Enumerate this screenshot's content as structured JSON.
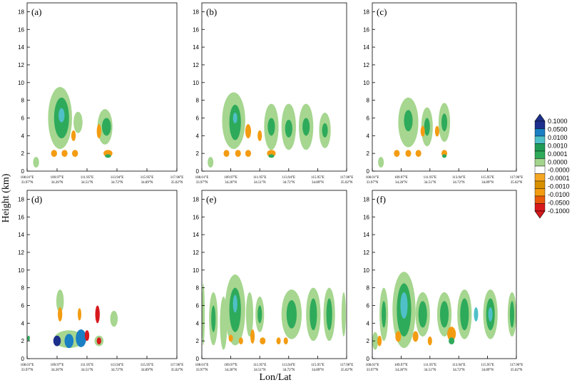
{
  "figure": {
    "ylabel": "Height (km)",
    "xlabel": "Lon/Lat"
  },
  "colorbar": {
    "colors": [
      "#d7191c",
      "#e8590c",
      "#f39c12",
      "#d89000",
      "#f5a623",
      "#ffffff",
      "#a3d48c",
      "#2eaa5b",
      "#1f9b55",
      "#4fc0c8",
      "#1a7fc3",
      "#1c2f8c"
    ],
    "labels": [
      "0.1000",
      "0.0500",
      "0.0100",
      "0.0010",
      "0.0001",
      "0.0000",
      "-0.0000",
      "-0.0001",
      "-0.0010",
      "-0.0100",
      "-0.0500",
      "-0.1000"
    ]
  },
  "chart_data": [
    {
      "type": "contour",
      "panel_label": "(a)",
      "ylim": [
        0,
        19
      ],
      "yticks": [
        0,
        2,
        4,
        6,
        8,
        10,
        12,
        14,
        16,
        18
      ],
      "xticks": [
        {
          "lon": "108.01°E",
          "lat": "33.97°N"
        },
        {
          "lon": "109.97°E",
          "lat": "34.26°N"
        },
        {
          "lon": "111.95°E",
          "lat": "34.51°N"
        },
        {
          "lon": "113.94°E",
          "lat": "34.72°N"
        },
        {
          "lon": "115.95°E",
          "lat": "34.89°N"
        },
        {
          "lon": "117.96°E",
          "lat": "35.02°N"
        }
      ],
      "features": [
        {
          "x": 0.06,
          "y": 1.0,
          "rx": 0.02,
          "ry": 0.6,
          "level": "light-green"
        },
        {
          "x": 0.22,
          "y": 6.0,
          "rx": 0.08,
          "ry": 3.5,
          "level": "light-green"
        },
        {
          "x": 0.23,
          "y": 6.0,
          "rx": 0.05,
          "ry": 2.3,
          "level": "green"
        },
        {
          "x": 0.23,
          "y": 6.3,
          "rx": 0.02,
          "ry": 0.8,
          "level": "cyan"
        },
        {
          "x": 0.34,
          "y": 5.5,
          "rx": 0.03,
          "ry": 1.2,
          "level": "light-green"
        },
        {
          "x": 0.52,
          "y": 5.0,
          "rx": 0.05,
          "ry": 2.0,
          "level": "light-green"
        },
        {
          "x": 0.53,
          "y": 5.0,
          "rx": 0.03,
          "ry": 1.0,
          "level": "green"
        },
        {
          "x": 0.48,
          "y": 4.5,
          "rx": 0.015,
          "ry": 0.8,
          "level": "orange"
        },
        {
          "x": 0.31,
          "y": 4.0,
          "rx": 0.015,
          "ry": 0.6,
          "level": "orange"
        },
        {
          "x": 0.18,
          "y": 2.0,
          "rx": 0.02,
          "ry": 0.4,
          "level": "orange"
        },
        {
          "x": 0.25,
          "y": 2.0,
          "rx": 0.02,
          "ry": 0.4,
          "level": "orange"
        },
        {
          "x": 0.32,
          "y": 2.0,
          "rx": 0.02,
          "ry": 0.4,
          "level": "orange"
        },
        {
          "x": 0.54,
          "y": 2.0,
          "rx": 0.03,
          "ry": 0.4,
          "level": "orange"
        },
        {
          "x": 0.54,
          "y": 1.7,
          "rx": 0.02,
          "ry": 0.2,
          "level": "green"
        }
      ]
    },
    {
      "type": "contour",
      "panel_label": "(b)",
      "ylim": [
        0,
        19
      ],
      "yticks": [
        0,
        2,
        4,
        6,
        8,
        10,
        12,
        14,
        16,
        18
      ],
      "xticks": [
        {
          "lon": "108.01°E",
          "lat": "33.97°N"
        },
        {
          "lon": "109.97°E",
          "lat": "34.26°N"
        },
        {
          "lon": "111.95°E",
          "lat": "34.51°N"
        },
        {
          "lon": "113.94°E",
          "lat": "34.72°N"
        },
        {
          "lon": "115.95°E",
          "lat": "34.89°N"
        },
        {
          "lon": "117.96°E",
          "lat": "35.02°N"
        }
      ],
      "features": [
        {
          "x": 0.06,
          "y": 1.0,
          "rx": 0.02,
          "ry": 0.6,
          "level": "light-green"
        },
        {
          "x": 0.22,
          "y": 5.7,
          "rx": 0.08,
          "ry": 3.2,
          "level": "light-green"
        },
        {
          "x": 0.23,
          "y": 5.5,
          "rx": 0.04,
          "ry": 2.0,
          "level": "green"
        },
        {
          "x": 0.23,
          "y": 6.0,
          "rx": 0.015,
          "ry": 0.6,
          "level": "cyan"
        },
        {
          "x": 0.32,
          "y": 4.5,
          "rx": 0.02,
          "ry": 0.8,
          "level": "orange"
        },
        {
          "x": 0.48,
          "y": 5.0,
          "rx": 0.05,
          "ry": 2.6,
          "level": "light-green"
        },
        {
          "x": 0.48,
          "y": 5.0,
          "rx": 0.025,
          "ry": 1.0,
          "level": "green"
        },
        {
          "x": 0.6,
          "y": 5.0,
          "rx": 0.05,
          "ry": 2.6,
          "level": "light-green"
        },
        {
          "x": 0.6,
          "y": 4.8,
          "rx": 0.025,
          "ry": 1.0,
          "level": "green"
        },
        {
          "x": 0.72,
          "y": 5.0,
          "rx": 0.05,
          "ry": 2.6,
          "level": "light-green"
        },
        {
          "x": 0.72,
          "y": 5.0,
          "rx": 0.025,
          "ry": 1.0,
          "level": "green"
        },
        {
          "x": 0.85,
          "y": 4.6,
          "rx": 0.04,
          "ry": 2.0,
          "level": "light-green"
        },
        {
          "x": 0.85,
          "y": 4.6,
          "rx": 0.02,
          "ry": 0.8,
          "level": "green"
        },
        {
          "x": 0.4,
          "y": 4.0,
          "rx": 0.015,
          "ry": 0.6,
          "level": "orange"
        },
        {
          "x": 0.17,
          "y": 2.0,
          "rx": 0.02,
          "ry": 0.4,
          "level": "orange"
        },
        {
          "x": 0.25,
          "y": 2.0,
          "rx": 0.02,
          "ry": 0.4,
          "level": "orange"
        },
        {
          "x": 0.32,
          "y": 2.0,
          "rx": 0.02,
          "ry": 0.4,
          "level": "orange"
        },
        {
          "x": 0.48,
          "y": 2.0,
          "rx": 0.03,
          "ry": 0.4,
          "level": "orange"
        },
        {
          "x": 0.48,
          "y": 1.7,
          "rx": 0.02,
          "ry": 0.2,
          "level": "green"
        }
      ]
    },
    {
      "type": "contour",
      "panel_label": "(c)",
      "ylim": [
        0,
        19
      ],
      "yticks": [
        0,
        2,
        4,
        6,
        8,
        10,
        12,
        14,
        16,
        18
      ],
      "xticks": [
        {
          "lon": "108.01°E",
          "lat": "33.97°N"
        },
        {
          "lon": "109.97°E",
          "lat": "34.26°N"
        },
        {
          "lon": "111.95°E",
          "lat": "34.51°N"
        },
        {
          "lon": "113.94°E",
          "lat": "34.72°N"
        },
        {
          "lon": "115.95°E",
          "lat": "34.89°N"
        },
        {
          "lon": "117.96°E",
          "lat": "35.02°N"
        }
      ],
      "features": [
        {
          "x": 0.06,
          "y": 1.0,
          "rx": 0.02,
          "ry": 0.6,
          "level": "light-green"
        },
        {
          "x": 0.25,
          "y": 5.5,
          "rx": 0.07,
          "ry": 2.8,
          "level": "light-green"
        },
        {
          "x": 0.25,
          "y": 5.7,
          "rx": 0.03,
          "ry": 1.2,
          "level": "green"
        },
        {
          "x": 0.38,
          "y": 5.0,
          "rx": 0.04,
          "ry": 2.2,
          "level": "light-green"
        },
        {
          "x": 0.38,
          "y": 5.0,
          "rx": 0.02,
          "ry": 1.0,
          "level": "green"
        },
        {
          "x": 0.5,
          "y": 5.5,
          "rx": 0.04,
          "ry": 2.2,
          "level": "light-green"
        },
        {
          "x": 0.5,
          "y": 5.5,
          "rx": 0.02,
          "ry": 1.0,
          "level": "green"
        },
        {
          "x": 0.35,
          "y": 4.5,
          "rx": 0.015,
          "ry": 0.6,
          "level": "orange"
        },
        {
          "x": 0.45,
          "y": 4.5,
          "rx": 0.015,
          "ry": 0.6,
          "level": "orange"
        },
        {
          "x": 0.17,
          "y": 2.0,
          "rx": 0.02,
          "ry": 0.4,
          "level": "orange"
        },
        {
          "x": 0.25,
          "y": 2.0,
          "rx": 0.02,
          "ry": 0.4,
          "level": "orange"
        },
        {
          "x": 0.32,
          "y": 2.0,
          "rx": 0.02,
          "ry": 0.4,
          "level": "orange"
        },
        {
          "x": 0.5,
          "y": 2.0,
          "rx": 0.02,
          "ry": 0.4,
          "level": "orange"
        },
        {
          "x": 0.5,
          "y": 1.7,
          "rx": 0.015,
          "ry": 0.2,
          "level": "green"
        }
      ]
    },
    {
      "type": "contour",
      "panel_label": "(d)",
      "ylim": [
        0,
        19
      ],
      "yticks": [
        0,
        2,
        4,
        6,
        8,
        10,
        12,
        14,
        16,
        18
      ],
      "xticks": [
        {
          "lon": "108.01°E",
          "lat": "33.97°N"
        },
        {
          "lon": "109.97°E",
          "lat": "34.26°N"
        },
        {
          "lon": "111.95°E",
          "lat": "34.51°N"
        },
        {
          "lon": "113.94°E",
          "lat": "34.72°N"
        },
        {
          "lon": "115.95°E",
          "lat": "34.89°N"
        },
        {
          "lon": "117.96°E",
          "lat": "35.02°N"
        }
      ],
      "features": [
        {
          "x": 0.22,
          "y": 6.5,
          "rx": 0.025,
          "ry": 1.3,
          "level": "light-green"
        },
        {
          "x": 0.22,
          "y": 5.0,
          "rx": 0.015,
          "ry": 0.8,
          "level": "orange"
        },
        {
          "x": 0.35,
          "y": 5.0,
          "rx": 0.012,
          "ry": 0.7,
          "level": "orange"
        },
        {
          "x": 0.47,
          "y": 5.0,
          "rx": 0.015,
          "ry": 1.0,
          "level": "red"
        },
        {
          "x": 0.58,
          "y": 4.5,
          "rx": 0.025,
          "ry": 0.9,
          "level": "light-green"
        },
        {
          "x": 0.28,
          "y": 2.2,
          "rx": 0.1,
          "ry": 1.0,
          "level": "light-green"
        },
        {
          "x": 0.2,
          "y": 2.0,
          "rx": 0.025,
          "ry": 0.6,
          "level": "dark-blue"
        },
        {
          "x": 0.28,
          "y": 2.0,
          "rx": 0.03,
          "ry": 0.8,
          "level": "blue"
        },
        {
          "x": 0.36,
          "y": 2.3,
          "rx": 0.035,
          "ry": 1.0,
          "level": "blue"
        },
        {
          "x": 0.4,
          "y": 2.6,
          "rx": 0.015,
          "ry": 0.6,
          "level": "red"
        },
        {
          "x": 0.48,
          "y": 2.0,
          "rx": 0.03,
          "ry": 0.6,
          "level": "light-green"
        },
        {
          "x": 0.48,
          "y": 2.0,
          "rx": 0.015,
          "ry": 0.4,
          "level": "red"
        },
        {
          "x": 0.01,
          "y": 2.3,
          "rx": 0.008,
          "ry": 0.3,
          "level": "green"
        }
      ]
    },
    {
      "type": "contour",
      "panel_label": "(e)",
      "ylim": [
        0,
        19
      ],
      "yticks": [
        0,
        2,
        4,
        6,
        8,
        10,
        12,
        14,
        16,
        18
      ],
      "xticks": [
        {
          "lon": "108.01°E",
          "lat": "33.97°N"
        },
        {
          "lon": "109.97°E",
          "lat": "34.26°N"
        },
        {
          "lon": "111.95°E",
          "lat": "34.51°N"
        },
        {
          "lon": "113.94°E",
          "lat": "34.72°N"
        },
        {
          "lon": "115.95°E",
          "lat": "34.89°N"
        },
        {
          "lon": "117.96°E",
          "lat": "35.02°N"
        }
      ],
      "features": [
        {
          "x": 0.01,
          "y": 5.0,
          "rx": 0.01,
          "ry": 3.5,
          "level": "light-green"
        },
        {
          "x": 0.08,
          "y": 4.5,
          "rx": 0.03,
          "ry": 3.0,
          "level": "light-green"
        },
        {
          "x": 0.08,
          "y": 4.5,
          "rx": 0.015,
          "ry": 1.5,
          "level": "green"
        },
        {
          "x": 0.15,
          "y": 4.0,
          "rx": 0.025,
          "ry": 3.0,
          "level": "light-green"
        },
        {
          "x": 0.23,
          "y": 5.5,
          "rx": 0.07,
          "ry": 4.0,
          "level": "light-green"
        },
        {
          "x": 0.23,
          "y": 5.5,
          "rx": 0.04,
          "ry": 2.5,
          "level": "green"
        },
        {
          "x": 0.23,
          "y": 6.2,
          "rx": 0.015,
          "ry": 1.0,
          "level": "cyan"
        },
        {
          "x": 0.33,
          "y": 5.0,
          "rx": 0.025,
          "ry": 2.5,
          "level": "light-green"
        },
        {
          "x": 0.4,
          "y": 5.0,
          "rx": 0.03,
          "ry": 2.0,
          "level": "light-green"
        },
        {
          "x": 0.4,
          "y": 5.0,
          "rx": 0.015,
          "ry": 1.0,
          "level": "green"
        },
        {
          "x": 0.62,
          "y": 5.0,
          "rx": 0.07,
          "ry": 2.8,
          "level": "light-green"
        },
        {
          "x": 0.62,
          "y": 5.0,
          "rx": 0.035,
          "ry": 1.6,
          "level": "green"
        },
        {
          "x": 0.77,
          "y": 5.0,
          "rx": 0.05,
          "ry": 3.0,
          "level": "light-green"
        },
        {
          "x": 0.77,
          "y": 5.0,
          "rx": 0.025,
          "ry": 1.8,
          "level": "green"
        },
        {
          "x": 0.88,
          "y": 5.0,
          "rx": 0.04,
          "ry": 3.0,
          "level": "light-green"
        },
        {
          "x": 0.88,
          "y": 5.0,
          "rx": 0.02,
          "ry": 1.8,
          "level": "green"
        },
        {
          "x": 0.98,
          "y": 5.0,
          "rx": 0.015,
          "ry": 2.5,
          "level": "light-green"
        },
        {
          "x": 0.2,
          "y": 2.3,
          "rx": 0.015,
          "ry": 0.4,
          "level": "orange"
        },
        {
          "x": 0.27,
          "y": 2.0,
          "rx": 0.015,
          "ry": 0.4,
          "level": "orange"
        },
        {
          "x": 0.35,
          "y": 2.5,
          "rx": 0.015,
          "ry": 0.8,
          "level": "orange"
        },
        {
          "x": 0.42,
          "y": 2.0,
          "rx": 0.02,
          "ry": 0.4,
          "level": "orange"
        },
        {
          "x": 0.53,
          "y": 2.0,
          "rx": 0.015,
          "ry": 0.4,
          "level": "orange"
        },
        {
          "x": 0.58,
          "y": 2.0,
          "rx": 0.015,
          "ry": 0.4,
          "level": "orange"
        }
      ]
    },
    {
      "type": "contour",
      "panel_label": "(f)",
      "ylim": [
        0,
        19
      ],
      "yticks": [
        0,
        2,
        4,
        6,
        8,
        10,
        12,
        14,
        16,
        18
      ],
      "xticks": [
        {
          "lon": "108.01°E",
          "lat": "33.97°N"
        },
        {
          "lon": "109.97°E",
          "lat": "34.26°N"
        },
        {
          "lon": "111.95°E",
          "lat": "34.51°N"
        },
        {
          "lon": "113.94°E",
          "lat": "34.72°N"
        },
        {
          "lon": "115.95°E",
          "lat": "34.89°N"
        },
        {
          "lon": "117.96°E",
          "lat": "35.02°N"
        }
      ],
      "features": [
        {
          "x": 0.02,
          "y": 2.0,
          "rx": 0.02,
          "ry": 1.0,
          "level": "light-green"
        },
        {
          "x": 0.08,
          "y": 5.0,
          "rx": 0.03,
          "ry": 3.0,
          "level": "light-green"
        },
        {
          "x": 0.08,
          "y": 5.0,
          "rx": 0.015,
          "ry": 1.5,
          "level": "green"
        },
        {
          "x": 0.22,
          "y": 5.5,
          "rx": 0.08,
          "ry": 4.3,
          "level": "light-green"
        },
        {
          "x": 0.22,
          "y": 5.5,
          "rx": 0.05,
          "ry": 3.0,
          "level": "green"
        },
        {
          "x": 0.22,
          "y": 6.0,
          "rx": 0.025,
          "ry": 1.5,
          "level": "cyan"
        },
        {
          "x": 0.35,
          "y": 5.0,
          "rx": 0.05,
          "ry": 2.5,
          "level": "light-green"
        },
        {
          "x": 0.35,
          "y": 5.0,
          "rx": 0.03,
          "ry": 1.5,
          "level": "green"
        },
        {
          "x": 0.5,
          "y": 5.0,
          "rx": 0.05,
          "ry": 2.5,
          "level": "light-green"
        },
        {
          "x": 0.5,
          "y": 5.0,
          "rx": 0.03,
          "ry": 1.5,
          "level": "green"
        },
        {
          "x": 0.64,
          "y": 5.0,
          "rx": 0.05,
          "ry": 2.8,
          "level": "light-green"
        },
        {
          "x": 0.64,
          "y": 5.0,
          "rx": 0.03,
          "ry": 1.8,
          "level": "green"
        },
        {
          "x": 0.72,
          "y": 5.0,
          "rx": 0.015,
          "ry": 0.8,
          "level": "cyan"
        },
        {
          "x": 0.82,
          "y": 5.0,
          "rx": 0.05,
          "ry": 2.8,
          "level": "light-green"
        },
        {
          "x": 0.82,
          "y": 5.0,
          "rx": 0.03,
          "ry": 1.8,
          "level": "green"
        },
        {
          "x": 0.82,
          "y": 5.0,
          "rx": 0.015,
          "ry": 0.8,
          "level": "cyan"
        },
        {
          "x": 0.97,
          "y": 5.0,
          "rx": 0.03,
          "ry": 2.5,
          "level": "light-green"
        },
        {
          "x": 0.97,
          "y": 5.0,
          "rx": 0.015,
          "ry": 1.5,
          "level": "green"
        },
        {
          "x": 0.05,
          "y": 2.0,
          "rx": 0.015,
          "ry": 0.6,
          "level": "orange"
        },
        {
          "x": 0.18,
          "y": 2.5,
          "rx": 0.02,
          "ry": 0.6,
          "level": "orange"
        },
        {
          "x": 0.3,
          "y": 2.5,
          "rx": 0.02,
          "ry": 0.6,
          "level": "orange"
        },
        {
          "x": 0.4,
          "y": 2.0,
          "rx": 0.015,
          "ry": 0.5,
          "level": "orange"
        },
        {
          "x": 0.55,
          "y": 2.8,
          "rx": 0.03,
          "ry": 0.8,
          "level": "orange"
        },
        {
          "x": 0.55,
          "y": 2.0,
          "rx": 0.02,
          "ry": 0.4,
          "level": "green"
        }
      ]
    }
  ]
}
